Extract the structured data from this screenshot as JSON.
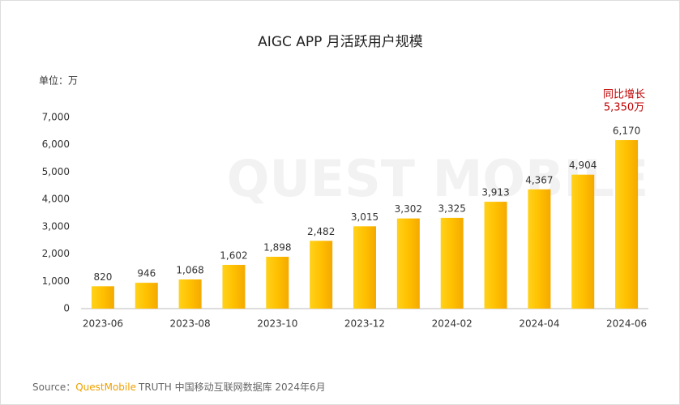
{
  "chart_data": {
    "type": "bar",
    "title": "AIGC APP 月活跃用户规模",
    "unit_label": "单位：万",
    "watermark": "QUEST MOBILE",
    "categories": [
      "2023-06",
      null,
      "2023-08",
      null,
      "2023-10",
      null,
      "2023-12",
      null,
      "2024-02",
      null,
      "2024-04",
      null,
      "2024-06"
    ],
    "values": [
      820,
      946,
      1068,
      1602,
      1898,
      2482,
      3015,
      3302,
      3325,
      3913,
      4367,
      4904,
      6170
    ],
    "value_labels": [
      "820",
      "946",
      "1,068",
      "1,602",
      "1,898",
      "2,482",
      "3,015",
      "3,302",
      "3,325",
      "3,913",
      "4,367",
      "4,904",
      "6,170"
    ],
    "color": "#FFC000",
    "ylim": [
      0,
      7000
    ],
    "yticks": [
      0,
      {
        "value": 1000,
        "label": "1,000"
      },
      {
        "value": 2000,
        "label": "2,000"
      },
      {
        "value": 3000,
        "label": "3,000"
      },
      {
        "value": 4000,
        "label": "4,000"
      },
      {
        "value": 5000,
        "label": "5,000"
      },
      {
        "value": 6000,
        "label": "6,000"
      },
      {
        "value": 7000,
        "label": "7,000"
      }
    ],
    "grid": false,
    "annotation": [
      "同比增长",
      "5,350万"
    ],
    "source": [
      "Source：",
      "QuestMobile",
      "TRUTH 中国移动互联网数据库 2024年6月"
    ]
  }
}
